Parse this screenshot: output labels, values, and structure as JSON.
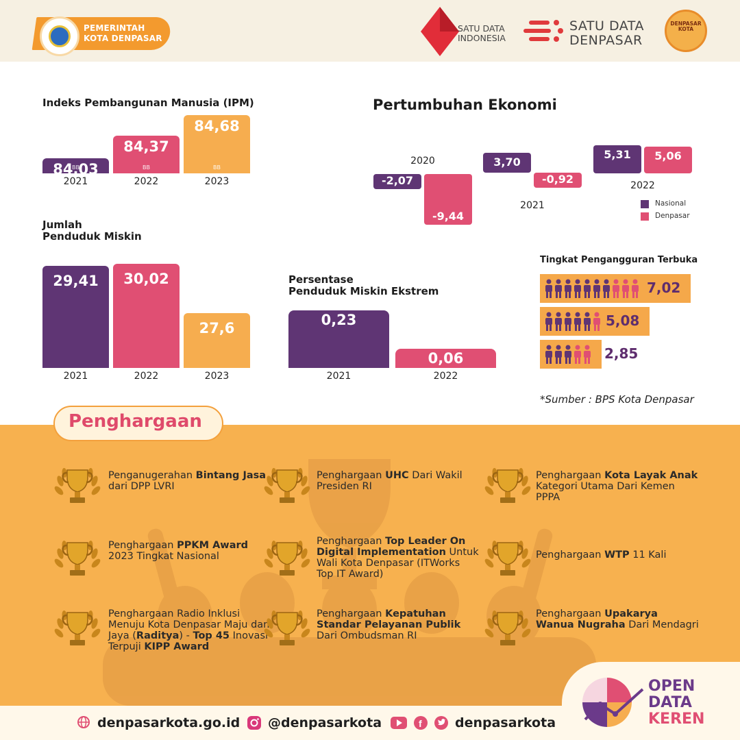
{
  "header": {
    "gov_line1": "PEMERINTAH",
    "gov_line2": "KOTA DENPASAR",
    "sdi_line1": "SATU DATA",
    "sdi_line2": "INDONESIA",
    "sdd_line1": "SATU DATA",
    "sdd_line2": "DENPASAR",
    "dk_line1": "DENPASAR",
    "dk_line2": "KOTA"
  },
  "colors": {
    "purple": "#5f3574",
    "pink": "#e04f73",
    "orange": "#f6ad4f"
  },
  "chart_data": [
    {
      "type": "bar",
      "title": "Indeks Pembangunan Manusia (IPM)",
      "categories": [
        "2021",
        "2022",
        "2023"
      ],
      "values": [
        84.03,
        84.37,
        84.68
      ],
      "value_labels": [
        "84,03",
        "84,37",
        "84,68"
      ],
      "badge": "BB"
    },
    {
      "type": "bar",
      "title": "Pertumbuhan Ekonomi",
      "categories": [
        "2020",
        "2021",
        "2022"
      ],
      "series": [
        {
          "name": "Nasional",
          "values": [
            -2.07,
            3.7,
            5.31
          ],
          "labels": [
            "-2,07",
            "3,70",
            "5,31"
          ]
        },
        {
          "name": "Denpasar",
          "values": [
            -9.44,
            -0.92,
            5.06
          ],
          "labels": [
            "-9,44",
            "-0,92",
            "5,06"
          ]
        }
      ],
      "legend": "bottom-right"
    },
    {
      "type": "bar",
      "title_line1": "Jumlah",
      "title_line2": "Penduduk Miskin",
      "categories": [
        "2021",
        "2022",
        "2023"
      ],
      "values": [
        29.41,
        30.02,
        27.6
      ],
      "value_labels": [
        "29,41",
        "30,02",
        "27,6"
      ]
    },
    {
      "type": "bar",
      "title_line1": "Persentase",
      "title_line2": "Penduduk Miskin Ekstrem",
      "categories": [
        "2021",
        "2022"
      ],
      "values": [
        0.23,
        0.06
      ],
      "value_labels": [
        "0,23",
        "0,06"
      ]
    },
    {
      "type": "bar",
      "title": "Tingkat Pengangguran Terbuka",
      "values": [
        7.02,
        5.08,
        2.85
      ],
      "value_labels": [
        "7,02",
        "5,08",
        "2,85"
      ]
    }
  ],
  "source": "*Sumber : BPS Kota Denpasar",
  "penghargaan": {
    "title": "Penghargaan",
    "awards": [
      [
        {
          "t": "Penganugerahan "
        },
        {
          "t": "Bintang Jasa",
          "b": true
        },
        {
          "t": " dari DPP LVRI"
        }
      ],
      [
        {
          "t": "Penghargaan "
        },
        {
          "t": "UHC",
          "b": true
        },
        {
          "t": " Dari Wakil Presiden RI"
        }
      ],
      [
        {
          "t": "Penghargaan "
        },
        {
          "t": "Kota Layak Anak",
          "b": true
        },
        {
          "t": " Kategori Utama Dari Kemen PPPA"
        }
      ],
      [
        {
          "t": "Penghargaan "
        },
        {
          "t": "PPKM Award",
          "b": true
        },
        {
          "t": " 2023 Tingkat Nasional"
        }
      ],
      [
        {
          "t": "Penghargaan "
        },
        {
          "t": "Top Leader On Digital Implementation",
          "b": true
        },
        {
          "t": " Untuk Wali Kota Denpasar (ITWorks Top IT Award)"
        }
      ],
      [
        {
          "t": "Penghargaan "
        },
        {
          "t": "WTP",
          "b": true
        },
        {
          "t": " 11 Kali"
        }
      ],
      [
        {
          "t": "Penghargaan Radio Inklusi Menuju Kota Denpasar Maju dan Jaya ("
        },
        {
          "t": "Raditya",
          "b": true
        },
        {
          "t": ") - "
        },
        {
          "t": "Top 45",
          "b": true
        },
        {
          "t": " Inovasi Terpuji "
        },
        {
          "t": "KIPP Award",
          "b": true
        }
      ],
      [
        {
          "t": "Penghargaan "
        },
        {
          "t": "Kepatuhan Standar Pelayanan Publik",
          "b": true
        },
        {
          "t": " Dari Ombudsman RI"
        }
      ],
      [
        {
          "t": "Penghargaan "
        },
        {
          "t": "Upakarya Wanua Nugraha",
          "b": true
        },
        {
          "t": " Dari Mendagri"
        }
      ]
    ]
  },
  "footer": {
    "website": "denpasarkota.go.id",
    "instagram": "@denpasarkota",
    "social": "denpasarkota",
    "odk_line1": "OPEN",
    "odk_line2": "DATA",
    "odk_line3": "KEREN"
  }
}
